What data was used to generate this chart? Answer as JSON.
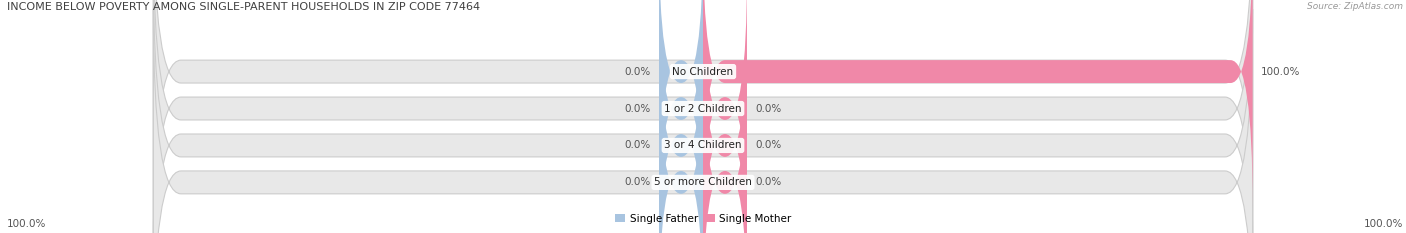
{
  "title": "INCOME BELOW POVERTY AMONG SINGLE-PARENT HOUSEHOLDS IN ZIP CODE 77464",
  "source": "Source: ZipAtlas.com",
  "categories": [
    "No Children",
    "1 or 2 Children",
    "3 or 4 Children",
    "5 or more Children"
  ],
  "single_father_values": [
    0.0,
    0.0,
    0.0,
    0.0
  ],
  "single_mother_values": [
    100.0,
    0.0,
    0.0,
    0.0
  ],
  "father_color": "#a8c4e0",
  "mother_color": "#f088a8",
  "bar_bg_color": "#e8e8e8",
  "bar_border_color": "#cccccc",
  "axis_bg_color": "#ffffff",
  "title_color": "#404040",
  "label_color": "#555555",
  "legend_father_color": "#a8c4e0",
  "legend_mother_color": "#f088a8",
  "axis_label_left": "100.0%",
  "axis_label_right": "100.0%",
  "bar_height": 0.62,
  "min_bar_width": 8,
  "figsize": [
    14.06,
    2.33
  ],
  "dpi": 100
}
